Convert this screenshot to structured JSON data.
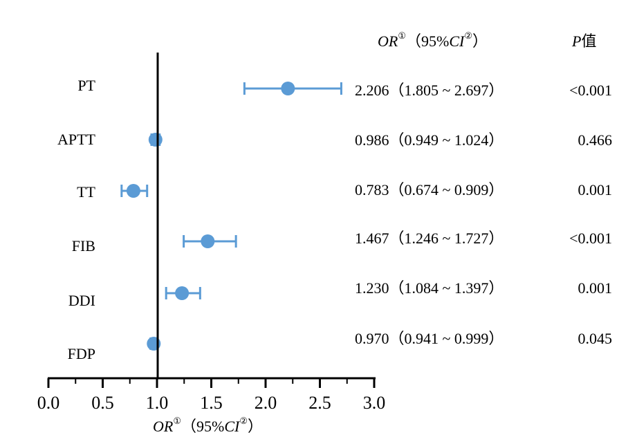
{
  "chart_data": {
    "type": "forest",
    "xlim": [
      0.0,
      3.0
    ],
    "reference_line": 1.0,
    "ticks": [
      "0.0",
      "0.5",
      "1.0",
      "1.5",
      "2.0",
      "2.5",
      "3.0"
    ],
    "xlabel": {
      "main": "OR",
      "sup1": "①",
      "middle": "（95%",
      "ci": "CI",
      "sup2": "②",
      "end": "）"
    },
    "header": {
      "or_main": "OR",
      "or_sup1": "①",
      "or_middle": "（95%",
      "or_ci": "CI",
      "or_sup2": "②",
      "or_end": "）",
      "p_italic": "P",
      "p_rest": "值"
    },
    "marker_color": "#5b9bd5",
    "rows": [
      {
        "label": "PT",
        "or": 2.206,
        "lo": 1.805,
        "hi": 2.697,
        "or_text": "2.206（1.805 ~ 2.697）",
        "p_text": "<0.001"
      },
      {
        "label": "APTT",
        "or": 0.986,
        "lo": 0.949,
        "hi": 1.024,
        "or_text": "0.986（0.949 ~ 1.024）",
        "p_text": "0.466"
      },
      {
        "label": "TT",
        "or": 0.783,
        "lo": 0.674,
        "hi": 0.909,
        "or_text": "0.783（0.674 ~ 0.909）",
        "p_text": "0.001"
      },
      {
        "label": "FIB",
        "or": 1.467,
        "lo": 1.246,
        "hi": 1.727,
        "or_text": "1.467（1.246 ~ 1.727）",
        "p_text": "<0.001"
      },
      {
        "label": "DDI",
        "or": 1.23,
        "lo": 1.084,
        "hi": 1.397,
        "or_text": "1.230（1.084 ~ 1.397）",
        "p_text": "0.001"
      },
      {
        "label": "FDP",
        "or": 0.97,
        "lo": 0.941,
        "hi": 0.999,
        "or_text": "0.970（0.941 ~ 0.999）",
        "p_text": "0.045"
      }
    ]
  }
}
